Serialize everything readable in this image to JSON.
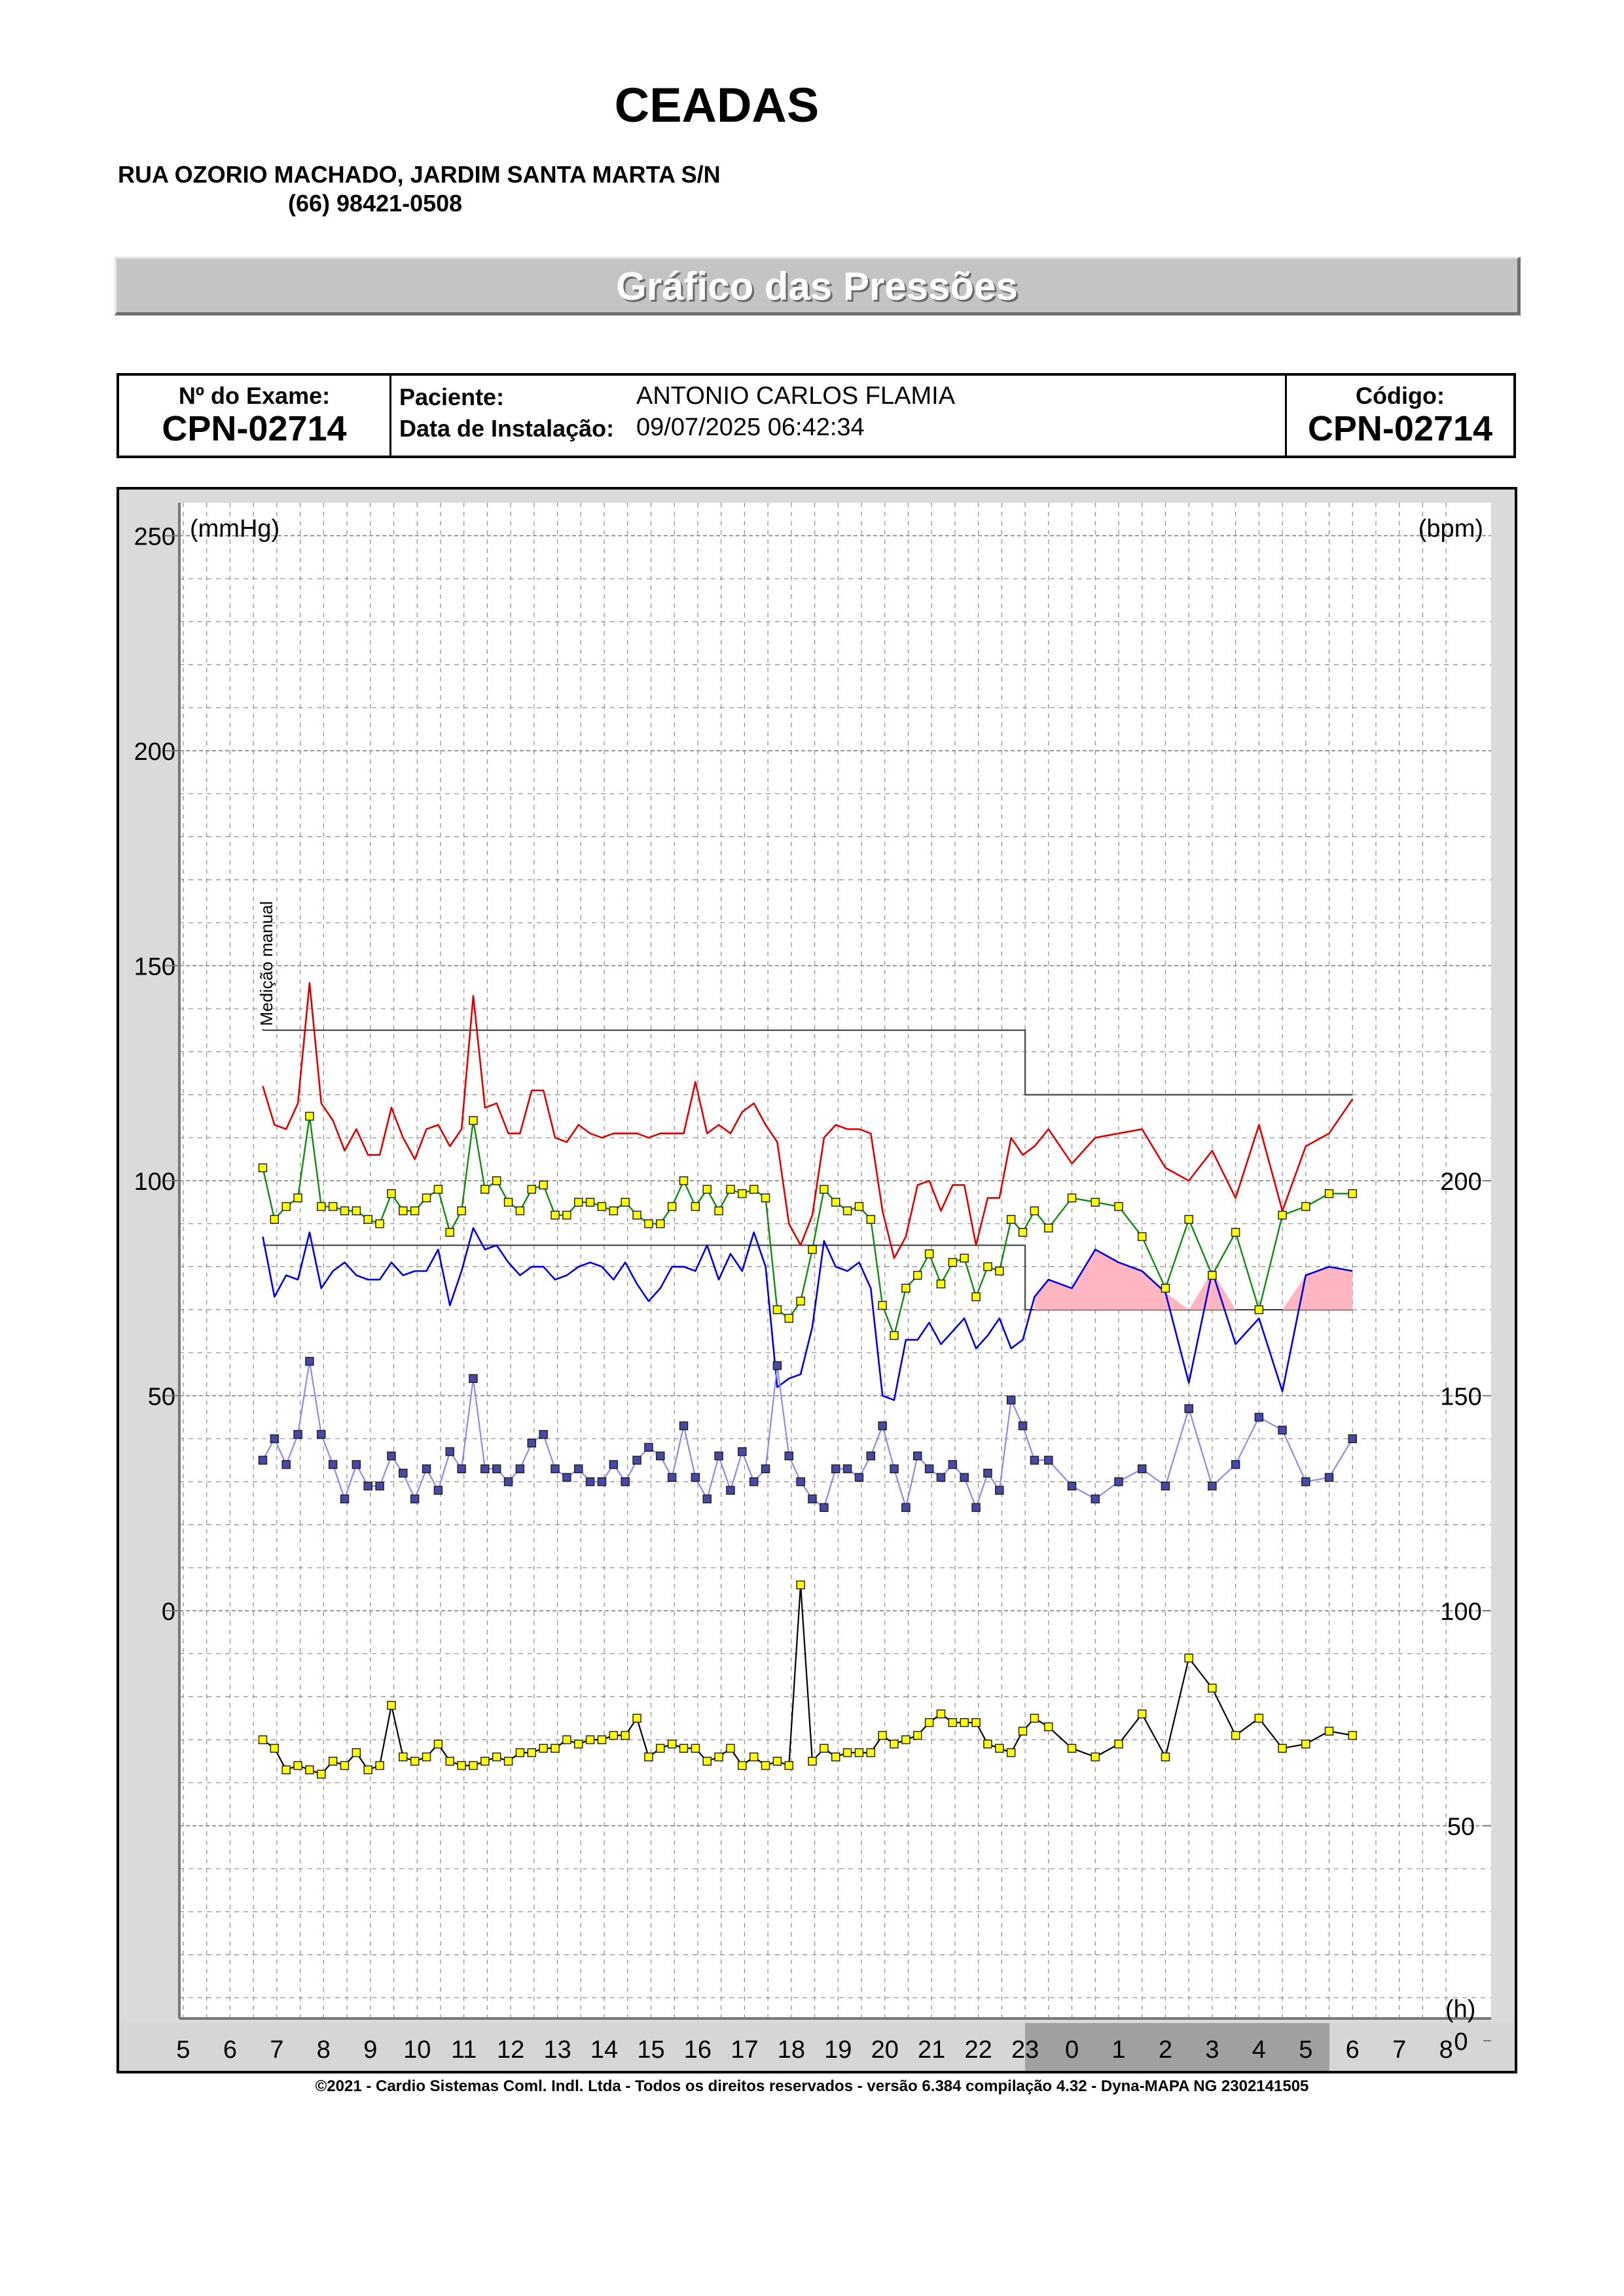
{
  "header": {
    "clinic_name": "CEADAS",
    "address": "RUA OZORIO MACHADO, JARDIM SANTA MARTA S/N",
    "phone": "(66) 98421-0508"
  },
  "banner": {
    "title": "Gráfico das Pressões"
  },
  "exam": {
    "number_label": "Nº do Exame:",
    "number": "CPN-02714",
    "patient_label": "Paciente:",
    "patient": "ANTONIO CARLOS  FLAMIA",
    "install_label": "Data de Instalação:",
    "install_date": "09/07/2025 06:42:34",
    "code_label": "Código:",
    "code": "CPN-02714"
  },
  "footer": {
    "text": "©2021 - Cardio Sistemas Coml. Indl. Ltda - Todos os direitos reservados - versão 6.384 compilação 4.32 - Dyna-MAPA NG 2302141505"
  },
  "chart_data": {
    "type": "line",
    "left_axis_label": "(mmHg)",
    "right_axis_label": "(bpm)",
    "x_axis_label": "(h)",
    "annotation": "Medição manual",
    "left_ticks": [
      250,
      200,
      150,
      100,
      50,
      0
    ],
    "right_ticks": [
      200,
      150,
      100,
      50,
      0
    ],
    "x_tick_labels": [
      "5",
      "6",
      "7",
      "8",
      "9",
      "10",
      "11",
      "12",
      "13",
      "14",
      "15",
      "16",
      "17",
      "18",
      "19",
      "20",
      "21",
      "22",
      "23",
      "0",
      "1",
      "2",
      "3",
      "4",
      "5",
      "6",
      "7",
      "8"
    ],
    "ylim_mmhg": [
      -100,
      250
    ],
    "ylim_bpm": [
      0,
      250
    ],
    "x_range_hours_from_5": [
      0,
      27
    ],
    "sleep_period": [
      "23",
      "6"
    ],
    "grid": true,
    "limits": {
      "systolic": {
        "day": 135,
        "night": 120,
        "change_at": "23"
      },
      "diastolic": {
        "day": 85,
        "night": 70,
        "change_at": "23"
      }
    },
    "colors": {
      "systolic": "#e00000",
      "mean": "#118a11",
      "diastolic": "#0000e0",
      "pulse_pressure": "#8a8aee",
      "heart_rate": "#000000",
      "marker_yellow": "#ffff00",
      "marker_purple": "#4848a8",
      "night_fill": "#ffb6c1",
      "night_axis": "#a0a0a0"
    },
    "times": [
      6.7,
      6.95,
      7.2,
      7.45,
      7.7,
      7.95,
      8.2,
      8.45,
      8.7,
      8.95,
      9.2,
      9.45,
      9.7,
      9.95,
      10.2,
      10.45,
      10.7,
      10.95,
      11.2,
      11.45,
      11.7,
      11.95,
      12.2,
      12.45,
      12.7,
      12.95,
      13.2,
      13.45,
      13.7,
      13.95,
      14.2,
      14.45,
      14.7,
      14.95,
      15.2,
      15.45,
      15.7,
      15.95,
      16.2,
      16.45,
      16.7,
      16.95,
      17.2,
      17.45,
      17.7,
      17.95,
      18.2,
      18.45,
      18.7,
      18.95,
      19.2,
      19.45,
      19.7,
      19.95,
      20.2,
      20.45,
      20.7,
      20.95,
      21.2,
      21.45,
      21.7,
      21.95,
      22.2,
      22.45,
      22.7,
      22.95,
      23.2,
      23.5,
      24.0,
      24.5,
      25.0,
      25.5,
      26.0,
      26.5,
      27.0,
      27.5,
      28.0,
      28.5,
      29.0,
      29.5,
      30.0
    ],
    "series": [
      {
        "name": "systolic",
        "values": [
          122,
          113,
          112,
          118,
          146,
          118,
          114,
          107,
          112,
          106,
          106,
          117,
          110,
          105,
          112,
          113,
          108,
          112,
          143,
          117,
          118,
          111,
          111,
          121,
          121,
          110,
          109,
          113,
          111,
          110,
          111,
          111,
          111,
          110,
          111,
          111,
          111,
          123,
          111,
          113,
          111,
          116,
          118,
          113,
          109,
          90,
          85,
          92,
          110,
          113,
          112,
          112,
          111,
          93,
          82,
          87,
          99,
          100,
          93,
          99,
          99,
          85,
          96,
          96,
          110,
          106,
          108,
          112,
          104,
          110,
          111,
          112,
          103,
          100,
          107,
          96,
          113,
          93,
          108,
          111,
          119
        ]
      },
      {
        "name": "mean",
        "values": [
          103,
          91,
          94,
          96,
          115,
          94,
          94,
          93,
          93,
          91,
          90,
          97,
          93,
          93,
          96,
          98,
          88,
          93,
          114,
          98,
          100,
          95,
          93,
          98,
          99,
          92,
          92,
          95,
          95,
          94,
          93,
          95,
          92,
          90,
          90,
          94,
          100,
          94,
          98,
          93,
          98,
          97,
          98,
          96,
          70,
          68,
          72,
          84,
          98,
          95,
          93,
          94,
          91,
          71,
          64,
          75,
          78,
          83,
          76,
          81,
          82,
          73,
          80,
          79,
          91,
          88,
          93,
          89,
          96,
          95,
          94,
          87,
          75,
          91,
          78,
          88,
          70,
          92,
          94,
          97,
          97
        ]
      },
      {
        "name": "diastolic",
        "values": [
          87,
          73,
          78,
          77,
          88,
          75,
          79,
          81,
          78,
          77,
          77,
          81,
          78,
          79,
          79,
          84,
          71,
          79,
          89,
          84,
          85,
          81,
          78,
          80,
          80,
          77,
          78,
          80,
          81,
          80,
          77,
          81,
          76,
          72,
          75,
          80,
          80,
          79,
          85,
          77,
          83,
          79,
          88,
          80,
          52,
          54,
          55,
          66,
          86,
          80,
          79,
          81,
          75,
          50,
          49,
          63,
          63,
          67,
          62,
          65,
          68,
          61,
          64,
          68,
          61,
          63,
          73,
          77,
          75,
          84,
          81,
          79,
          74,
          53,
          79,
          62,
          68,
          51,
          78,
          80,
          79
        ]
      },
      {
        "name": "pulse_pressure",
        "values": [
          35,
          40,
          34,
          41,
          58,
          41,
          34,
          26,
          34,
          29,
          29,
          36,
          32,
          26,
          33,
          28,
          37,
          33,
          54,
          33,
          33,
          30,
          33,
          39,
          41,
          33,
          31,
          33,
          30,
          30,
          34,
          30,
          35,
          38,
          36,
          31,
          43,
          31,
          26,
          36,
          28,
          37,
          30,
          33,
          57,
          36,
          30,
          26,
          24,
          33,
          33,
          31,
          36,
          43,
          33,
          24,
          36,
          33,
          31,
          34,
          31,
          24,
          32,
          28,
          49,
          43,
          35,
          35,
          29,
          26,
          30,
          33,
          29,
          47,
          29,
          34,
          45,
          42,
          30,
          31,
          40
        ]
      },
      {
        "name": "heart_rate",
        "values": [
          70,
          68,
          63,
          64,
          63,
          62,
          65,
          64,
          67,
          63,
          64,
          78,
          66,
          65,
          66,
          69,
          65,
          64,
          64,
          65,
          66,
          65,
          67,
          67,
          68,
          68,
          70,
          69,
          70,
          70,
          71,
          71,
          75,
          66,
          68,
          69,
          68,
          68,
          65,
          66,
          68,
          64,
          66,
          64,
          65,
          64,
          106,
          65,
          68,
          66,
          67,
          67,
          67,
          71,
          69,
          70,
          71,
          74,
          76,
          74,
          74,
          74,
          69,
          68,
          67,
          72,
          75,
          73,
          68,
          66,
          69,
          76,
          66,
          89,
          82,
          71,
          75,
          68,
          69,
          72,
          71
        ]
      }
    ]
  }
}
